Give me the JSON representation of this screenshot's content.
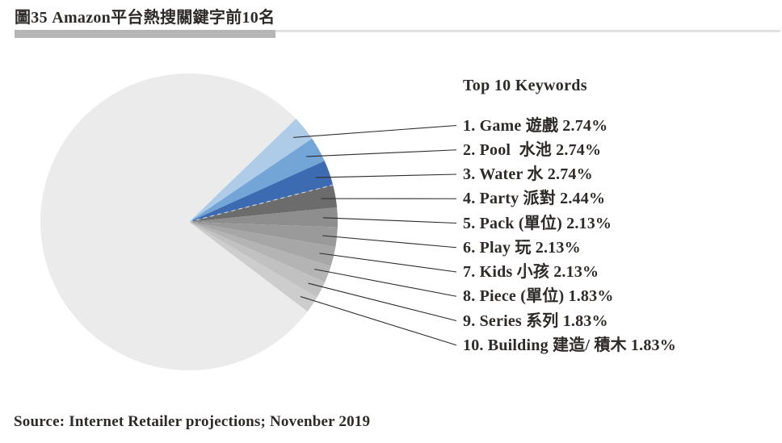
{
  "page": {
    "title": "圖35 Amazon平台熱搜關鍵字前10名",
    "source": "Source: Internet Retailer projections; Novenber 2019"
  },
  "legend": {
    "title": "Top 10 Keywords"
  },
  "colors": {
    "accent_bar": "#b6b6b6",
    "rule_line": "#e1e1e1",
    "leader_line": "#2b2b2b",
    "text": "#2e2a28",
    "remainder_slice": "#ebebeb",
    "dashed_divider": "#d8e3ef"
  },
  "chart_data": {
    "type": "pie",
    "title": "Top 10 Keywords",
    "unit": "%",
    "start_angle_deg": 44,
    "direction": "clockwise",
    "legend_position": "right",
    "items": [
      {
        "rank": 1,
        "keyword": "Game",
        "zh": "遊戲",
        "value": 2.74,
        "color": "#aecce7",
        "label": "1. Game 遊戲 2.74%"
      },
      {
        "rank": 2,
        "keyword": "Pool",
        "zh": "水池",
        "value": 2.74,
        "color": "#73a5d6",
        "label": "2. Pool  水池 2.74%"
      },
      {
        "rank": 3,
        "keyword": "Water",
        "zh": "水",
        "value": 2.74,
        "color": "#3d6bb1",
        "label": "3. Water 水 2.74%"
      },
      {
        "rank": 4,
        "keyword": "Party",
        "zh": "派對",
        "value": 2.44,
        "color": "#6c6c6c",
        "label": "4. Party 派對 2.44%"
      },
      {
        "rank": 5,
        "keyword": "Pack",
        "zh": "(單位)",
        "value": 2.13,
        "color": "#8e8e8e",
        "label": "5. Pack (單位) 2.13%"
      },
      {
        "rank": 6,
        "keyword": "Play",
        "zh": "玩",
        "value": 2.13,
        "color": "#9a9a9a",
        "label": "6. Play 玩 2.13%"
      },
      {
        "rank": 7,
        "keyword": "Kids",
        "zh": "小孩",
        "value": 2.13,
        "color": "#a7a7a7",
        "label": "7. Kids 小孩 2.13%"
      },
      {
        "rank": 8,
        "keyword": "Piece",
        "zh": "(單位)",
        "value": 1.83,
        "color": "#b4b4b4",
        "label": "8. Piece (單位) 1.83%"
      },
      {
        "rank": 9,
        "keyword": "Series",
        "zh": "系列",
        "value": 1.83,
        "color": "#c1c1c1",
        "label": "9. Series 系列 1.83%"
      },
      {
        "rank": 10,
        "keyword": "Building",
        "zh": "建造/ 積木",
        "value": 1.83,
        "color": "#cdcdcd",
        "label": "10. Building 建造/ 積木 1.83%"
      }
    ],
    "remainder": {
      "value": 77.46,
      "color": "#ebebeb"
    }
  }
}
